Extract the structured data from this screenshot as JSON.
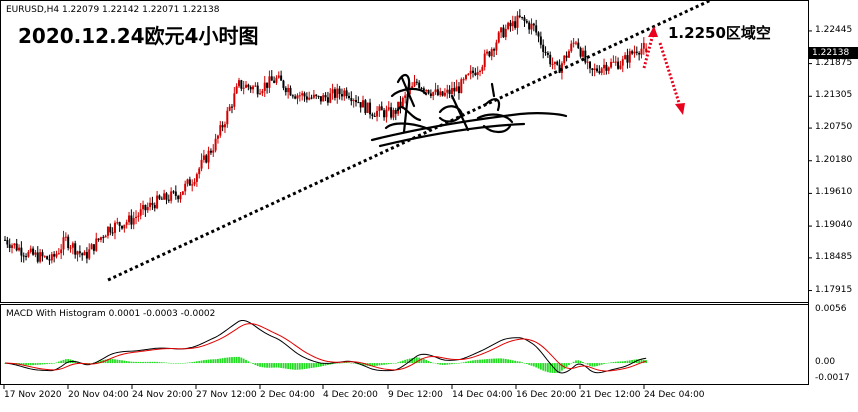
{
  "header": {
    "symbol_info": "EURUSD,H4  1.22079 1.22142 1.22071 1.22138",
    "title": "2020.12.24欧元4小时图"
  },
  "annotations": {
    "zone_label": "1.2250区域空"
  },
  "price_axis": {
    "current_price_label": "1.22138",
    "ticks": [
      "1.22445",
      "1.21875",
      "1.21305",
      "1.20750",
      "1.20180",
      "1.19610",
      "1.19040",
      "1.18485",
      "1.17915"
    ]
  },
  "macd_panel": {
    "label": "MACD With Histogram 0.0001 -0.0003 -0.0002",
    "ticks": [
      "0.0056",
      "0.00",
      "-0.0017"
    ]
  },
  "time_axis": {
    "ticks": [
      "17 Nov 2020",
      "20 Nov 04:00",
      "24 Nov 20:00",
      "27 Nov 12:00",
      "2 Dec 04:00",
      "4 Dec 20:00",
      "9 Dec 12:00",
      "14 Dec 04:00",
      "16 Dec 20:00",
      "21 Dec 12:00",
      "24 Dec 04:00"
    ]
  },
  "colors": {
    "bull": "#d40000",
    "bear": "#000000",
    "trendline": "#000000",
    "arrow": "#e8001c",
    "macd_line": "#000000",
    "signal_line": "#e00000",
    "histogram": "#22dd22",
    "current_price_box": "#000000"
  },
  "chart_data": {
    "type": "candlestick",
    "symbol": "EURUSD",
    "timeframe": "H4",
    "ohlc_last": {
      "open": 1.22079,
      "high": 1.22142,
      "low": 1.22071,
      "close": 1.22138
    },
    "y_range": [
      1.1775,
      1.2295
    ],
    "macd": {
      "value": 0.0001,
      "signal": -0.0003,
      "histogram": -0.0002,
      "y_range": [
        -0.0022,
        0.006
      ]
    },
    "close_path": [
      {
        "i": 0,
        "close": 1.188
      },
      {
        "i": 10,
        "close": 1.1855
      },
      {
        "i": 20,
        "close": 1.1845
      },
      {
        "i": 26,
        "close": 1.188
      },
      {
        "i": 34,
        "close": 1.185
      },
      {
        "i": 44,
        "close": 1.19
      },
      {
        "i": 54,
        "close": 1.1915
      },
      {
        "i": 64,
        "close": 1.1945
      },
      {
        "i": 74,
        "close": 1.196
      },
      {
        "i": 80,
        "close": 1.1985
      },
      {
        "i": 90,
        "close": 1.205
      },
      {
        "i": 100,
        "close": 1.215
      },
      {
        "i": 108,
        "close": 1.2145
      },
      {
        "i": 116,
        "close": 1.216
      },
      {
        "i": 124,
        "close": 1.2135
      },
      {
        "i": 134,
        "close": 1.2125
      },
      {
        "i": 146,
        "close": 1.214
      },
      {
        "i": 156,
        "close": 1.2105
      },
      {
        "i": 166,
        "close": 1.21
      },
      {
        "i": 176,
        "close": 1.2155
      },
      {
        "i": 186,
        "close": 1.213
      },
      {
        "i": 194,
        "close": 1.2145
      },
      {
        "i": 204,
        "close": 1.219
      },
      {
        "i": 212,
        "close": 1.224
      },
      {
        "i": 220,
        "close": 1.2265
      },
      {
        "i": 226,
        "close": 1.225
      },
      {
        "i": 232,
        "close": 1.22
      },
      {
        "i": 236,
        "close": 1.2175
      },
      {
        "i": 244,
        "close": 1.223
      },
      {
        "i": 250,
        "close": 1.217
      },
      {
        "i": 256,
        "close": 1.2185
      },
      {
        "i": 264,
        "close": 1.219
      },
      {
        "i": 270,
        "close": 1.2214
      }
    ]
  }
}
